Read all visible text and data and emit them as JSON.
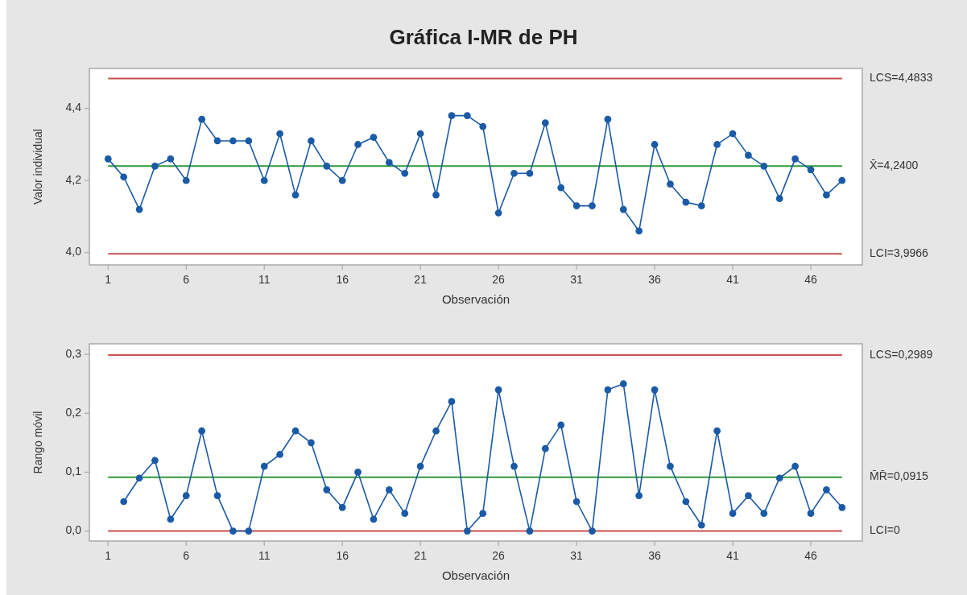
{
  "chart_data": [
    {
      "type": "line",
      "title": "Gráfica I-MR de PH",
      "xlabel": "Observación",
      "ylabel": "Valor individual",
      "x": [
        1,
        2,
        3,
        4,
        5,
        6,
        7,
        8,
        9,
        10,
        11,
        12,
        13,
        14,
        15,
        16,
        17,
        18,
        19,
        20,
        21,
        22,
        23,
        24,
        25,
        26,
        27,
        28,
        29,
        30,
        31,
        32,
        33,
        34,
        35,
        36,
        37,
        38,
        39,
        40,
        41,
        42,
        43,
        44,
        45,
        46,
        47,
        48
      ],
      "series": [
        {
          "color": "#1a5aa6",
          "values": [
            4.26,
            4.21,
            4.12,
            4.24,
            4.26,
            4.2,
            4.37,
            4.31,
            4.31,
            4.31,
            4.2,
            4.33,
            4.16,
            4.31,
            4.24,
            4.2,
            4.3,
            4.32,
            4.25,
            4.22,
            4.33,
            4.16,
            4.38,
            4.38,
            4.35,
            4.11,
            4.22,
            4.22,
            4.36,
            4.18,
            4.13,
            4.13,
            4.37,
            4.12,
            4.06,
            4.3,
            4.19,
            4.14,
            4.13,
            4.3,
            4.33,
            4.27,
            4.24,
            4.15,
            4.26,
            4.23,
            4.16,
            4.2
          ]
        }
      ],
      "xlim": [
        -0.2,
        49.3
      ],
      "xticks": [
        1,
        6,
        11,
        16,
        21,
        26,
        31,
        36,
        41,
        46
      ],
      "ylim": [
        3.966,
        4.511
      ],
      "yticks": [
        {
          "value": 4.0,
          "label": "4,0"
        },
        {
          "value": 4.2,
          "label": "4,2"
        },
        {
          "value": 4.4,
          "label": "4,4"
        }
      ],
      "marker": "circle",
      "line_style": "solid",
      "ref_lines": [
        {
          "axis": "y",
          "value": 4.4833,
          "label": "LCS=4,4833",
          "color": "#c9504e"
        },
        {
          "axis": "y",
          "value": 4.24,
          "label": "X̄=4,2400",
          "color": "#2e9a3a"
        },
        {
          "axis": "y",
          "value": 3.9966,
          "label": "LCI=3,9966",
          "color": "#c9504e"
        }
      ]
    },
    {
      "type": "line",
      "xlabel": "Observación",
      "ylabel": "Rango móvil",
      "series": [
        {
          "color": "#1a5aa6",
          "x": [
            2,
            3,
            4,
            5,
            6,
            7,
            8,
            9,
            10,
            11,
            12,
            13,
            14,
            15,
            16,
            17,
            18,
            19,
            20,
            21,
            22,
            23,
            24,
            25,
            26,
            27,
            28,
            29,
            30,
            31,
            32,
            33,
            34,
            35,
            36,
            37,
            38,
            39,
            40,
            41,
            42,
            43,
            44,
            45,
            46,
            47,
            48
          ],
          "values": [
            0.05,
            0.09,
            0.12,
            0.02,
            0.06,
            0.17,
            0.06,
            0.0,
            0.0,
            0.11,
            0.13,
            0.17,
            0.15,
            0.07,
            0.04,
            0.1,
            0.02,
            0.07,
            0.03,
            0.11,
            0.17,
            0.22,
            0.0,
            0.03,
            0.24,
            0.11,
            0.0,
            0.14,
            0.18,
            0.05,
            0.0,
            0.24,
            0.25,
            0.06,
            0.24,
            0.11,
            0.05,
            0.01,
            0.17,
            0.03,
            0.06,
            0.03,
            0.09,
            0.11,
            0.03,
            0.07,
            0.04
          ]
        }
      ],
      "xlim": [
        -0.2,
        49.3
      ],
      "xticks": [
        1,
        6,
        11,
        16,
        21,
        26,
        31,
        36,
        41,
        46
      ],
      "ylim": [
        -0.017,
        0.318
      ],
      "yticks": [
        {
          "value": 0.0,
          "label": "0,0"
        },
        {
          "value": 0.1,
          "label": "0,1"
        },
        {
          "value": 0.2,
          "label": "0,2"
        },
        {
          "value": 0.3,
          "label": "0,3"
        }
      ],
      "marker": "circle",
      "line_style": "solid",
      "ref_lines": [
        {
          "axis": "y",
          "value": 0.2989,
          "label": "LCS=0,2989",
          "color": "#c9504e"
        },
        {
          "axis": "y",
          "value": 0.0915,
          "label": "M̄R̄=0,0915",
          "color": "#2e9a3a"
        },
        {
          "axis": "y",
          "value": 0,
          "label": "LCI=0",
          "color": "#c9504e"
        }
      ]
    }
  ]
}
